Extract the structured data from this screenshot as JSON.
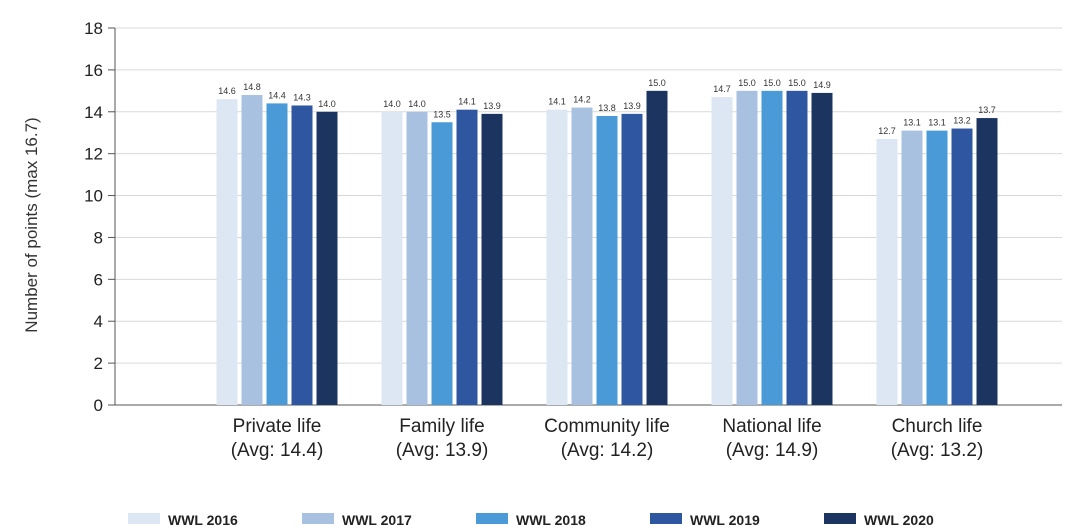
{
  "chart_data": {
    "type": "bar",
    "ylabel": "Number of points (max 16.7)",
    "xlabel": "",
    "ylim": [
      0,
      18
    ],
    "yticks": [
      0,
      2,
      4,
      6,
      8,
      10,
      12,
      14,
      16,
      18
    ],
    "grid": "horizontal",
    "legend_position": "bottom",
    "categories": [
      [
        "Private life",
        "(Avg: 14.4)"
      ],
      [
        "Family life",
        "(Avg: 13.9)"
      ],
      [
        "Community life",
        "(Avg: 14.2)"
      ],
      [
        "National life",
        "(Avg: 14.9)"
      ],
      [
        "Church life",
        "(Avg: 13.2)"
      ]
    ],
    "series": [
      {
        "name": "WWL 2016",
        "color": "#dde6f3",
        "values": [
          14.6,
          14.0,
          14.1,
          14.7,
          12.7
        ]
      },
      {
        "name": "WWL 2017",
        "color": "#a9c1e0",
        "values": [
          14.8,
          14.0,
          14.2,
          15.0,
          13.1
        ]
      },
      {
        "name": "WWL 2018",
        "color": "#4a9ad8",
        "values": [
          14.4,
          13.5,
          13.8,
          15.0,
          13.1
        ]
      },
      {
        "name": "WWL 2019",
        "color": "#2f56a0",
        "values": [
          14.3,
          14.1,
          13.9,
          15.0,
          13.2
        ]
      },
      {
        "name": "WWL 2020",
        "color": "#1c3460",
        "values": [
          14.0,
          13.9,
          15.0,
          14.9,
          13.7
        ]
      }
    ]
  }
}
